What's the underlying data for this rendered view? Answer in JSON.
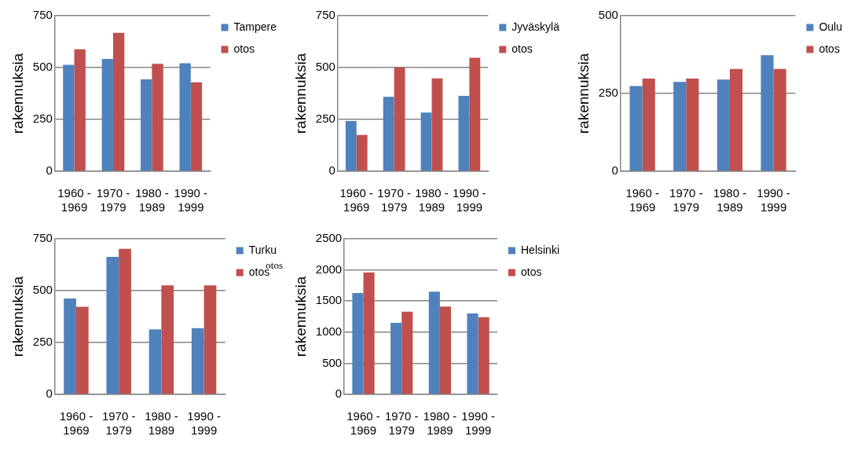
{
  "chart_data": [
    {
      "type": "bar",
      "ylabel": "rakennuksia",
      "categories": [
        "1960 - 1969",
        "1970 - 1979",
        "1980 - 1989",
        "1990 - 1999"
      ],
      "series": [
        {
          "name": "Tampere",
          "color": "#4f81bd",
          "values": [
            513,
            542,
            443,
            521
          ]
        },
        {
          "name": "otos",
          "color": "#c0504d",
          "values": [
            588,
            668,
            518,
            429
          ]
        }
      ],
      "ylim": [
        0,
        750
      ],
      "yticks": [
        0,
        250,
        500,
        750
      ],
      "grid": "y",
      "legend": "top right"
    },
    {
      "type": "bar",
      "ylabel": "rakennuksia",
      "categories": [
        "1960 - 1969",
        "1970 - 1979",
        "1980 - 1989",
        "1990 - 1999"
      ],
      "series": [
        {
          "name": "Jyväskylä",
          "color": "#4f81bd",
          "values": [
            242,
            359,
            283,
            364
          ]
        },
        {
          "name": "otos",
          "color": "#c0504d",
          "values": [
            175,
            500,
            448,
            547
          ]
        }
      ],
      "ylim": [
        0,
        750
      ],
      "yticks": [
        0,
        250,
        500,
        750
      ],
      "grid": "y",
      "legend": "top right"
    },
    {
      "type": "bar",
      "ylabel": "rakennuksia",
      "categories": [
        "1960 - 1969",
        "1970 - 1979",
        "1980 - 1989",
        "1990 - 1999"
      ],
      "series": [
        {
          "name": "Oulu",
          "color": "#4f81bd",
          "values": [
            274,
            287,
            295,
            373
          ]
        },
        {
          "name": "otos",
          "color": "#c0504d",
          "values": [
            298,
            298,
            329,
            329
          ]
        }
      ],
      "ylim": [
        0,
        500
      ],
      "yticks": [
        0,
        250,
        500
      ],
      "grid": "y",
      "legend": "top right"
    },
    {
      "type": "bar",
      "ylabel": "rakennuksia",
      "annotations": [
        "otos"
      ],
      "categories": [
        "1960 - 1969",
        "1970 - 1979",
        "1980 - 1989",
        "1990 - 1999"
      ],
      "series": [
        {
          "name": "Turku",
          "color": "#4f81bd",
          "values": [
            462,
            663,
            313,
            319
          ]
        },
        {
          "name": "otos",
          "color": "#c0504d",
          "values": [
            422,
            702,
            526,
            526
          ]
        }
      ],
      "ylim": [
        0,
        750
      ],
      "yticks": [
        0,
        250,
        500,
        750
      ],
      "grid": "y",
      "legend": "top right"
    },
    {
      "type": "bar",
      "ylabel": "rakennuksia",
      "categories": [
        "1960 - 1969",
        "1970 - 1979",
        "1980 - 1989",
        "1990 - 1999"
      ],
      "series": [
        {
          "name": "Helsinki",
          "color": "#4f81bd",
          "values": [
            1630,
            1150,
            1650,
            1300
          ]
        },
        {
          "name": "otos",
          "color": "#c0504d",
          "values": [
            1960,
            1330,
            1410,
            1240
          ]
        }
      ],
      "ylim": [
        0,
        2500
      ],
      "yticks": [
        0,
        500,
        1000,
        1500,
        2000,
        2500
      ],
      "grid": "y",
      "legend": "top right"
    }
  ]
}
